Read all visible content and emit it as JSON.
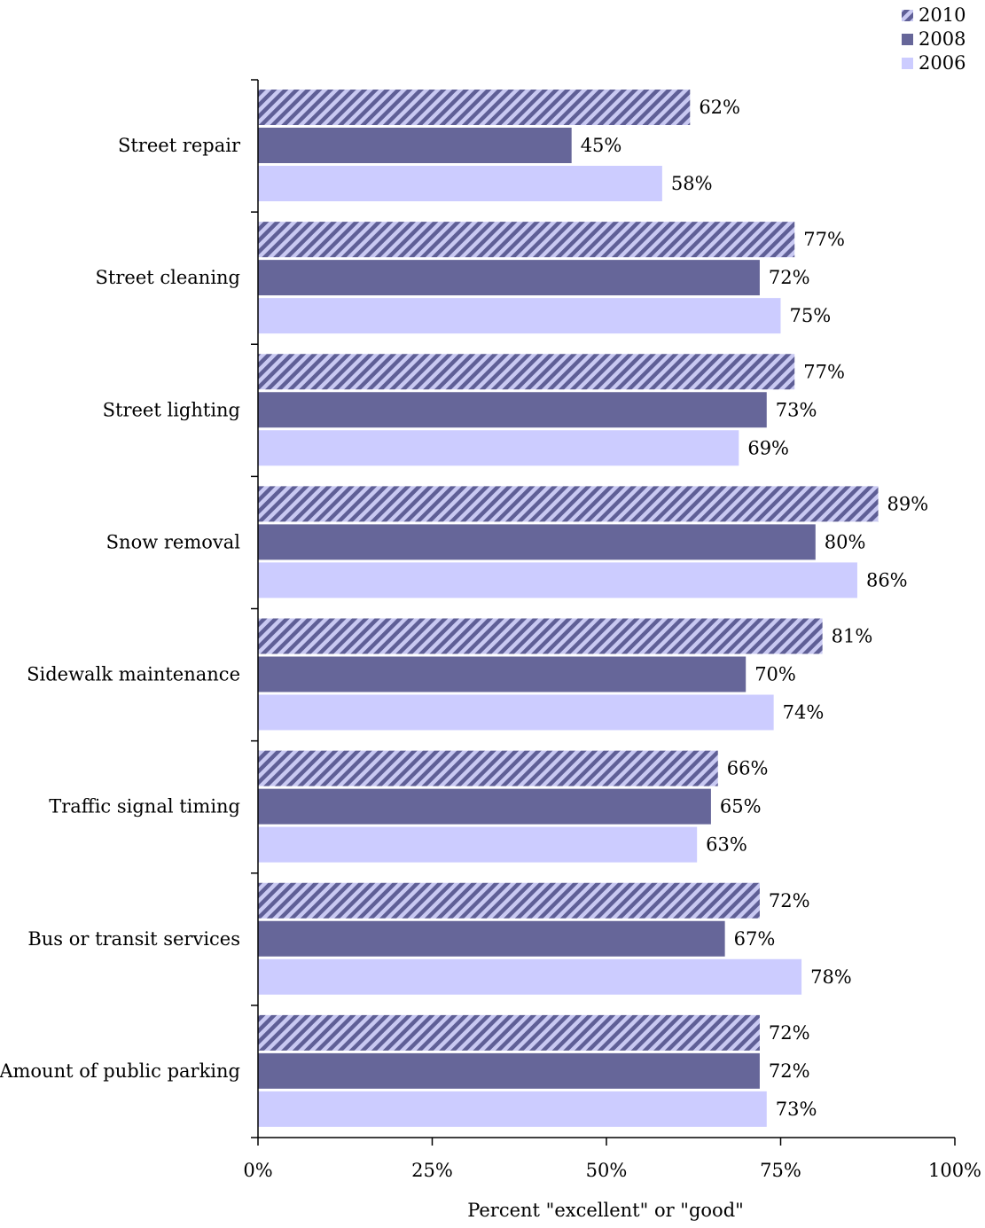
{
  "chart_data": {
    "type": "bar",
    "orientation": "horizontal",
    "title": "",
    "xlabel": "Percent \"excellent\" or \"good\"",
    "ylabel": "",
    "xlim": [
      0,
      100
    ],
    "xticks": [
      "0%",
      "25%",
      "50%",
      "75%",
      "100%"
    ],
    "xtick_values": [
      0,
      25,
      50,
      75,
      100
    ],
    "grid": false,
    "legend_position": "top-right",
    "categories": [
      "Street repair",
      "Street cleaning",
      "Street lighting",
      "Snow removal",
      "Sidewalk maintenance",
      "Traffic signal timing",
      "Bus or transit services",
      "Amount of public parking"
    ],
    "series": [
      {
        "name": "2010",
        "values": [
          62,
          77,
          77,
          89,
          81,
          66,
          72,
          72
        ],
        "color": "#9b9bd6",
        "pattern": "diagonal-hatch"
      },
      {
        "name": "2008",
        "values": [
          45,
          72,
          73,
          80,
          70,
          65,
          67,
          72
        ],
        "color": "#666699",
        "pattern": "solid"
      },
      {
        "name": "2006",
        "values": [
          58,
          75,
          69,
          86,
          74,
          63,
          78,
          73
        ],
        "color": "#ccccff",
        "pattern": "solid"
      }
    ],
    "value_suffix": "%"
  }
}
